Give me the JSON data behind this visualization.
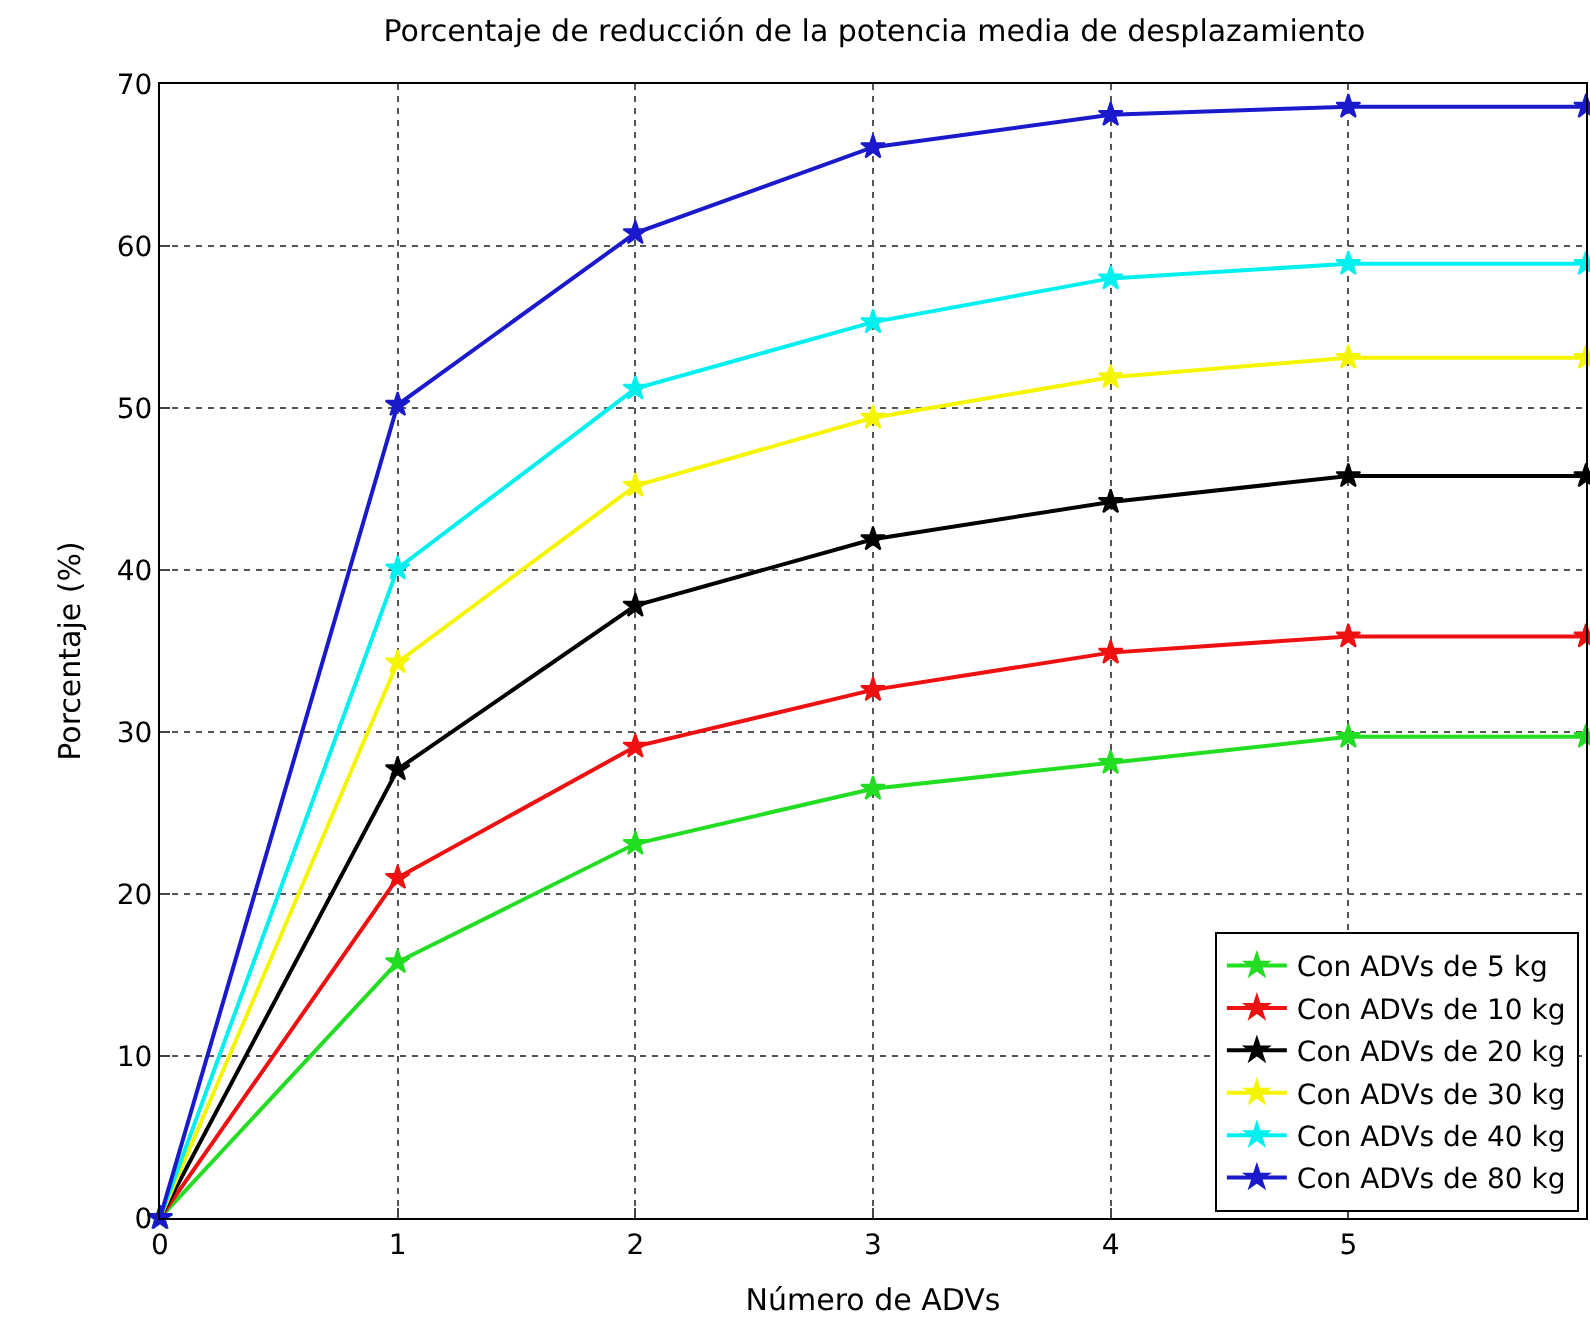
{
  "chart_data": {
    "type": "line",
    "title": "Porcentaje de reducción de la potencia media de desplazamiento",
    "xlabel": "Número de ADVs",
    "ylabel": "Porcentaje (%)",
    "x": [
      0,
      1,
      2,
      3,
      4,
      5,
      6
    ],
    "series": [
      {
        "name": "Con ADVs de 5 kg",
        "color": "#22dd22",
        "values": [
          0,
          15.8,
          23.1,
          26.5,
          28.1,
          29.7,
          29.7
        ]
      },
      {
        "name": "Con ADVs de 10 kg",
        "color": "#ee1111",
        "values": [
          0,
          21,
          29.1,
          32.6,
          34.9,
          35.9,
          35.9
        ]
      },
      {
        "name": "Con ADVs de 20 kg",
        "color": "#000000",
        "values": [
          0,
          27.7,
          37.8,
          41.9,
          44.2,
          45.8,
          45.8
        ]
      },
      {
        "name": "Con ADVs de 30 kg",
        "color": "#f5f500",
        "values": [
          0,
          34.3,
          45.2,
          49.4,
          51.9,
          53.1,
          53.1
        ]
      },
      {
        "name": "Con ADVs de 40 kg",
        "color": "#00f0f0",
        "values": [
          0,
          40.1,
          51.2,
          55.3,
          58,
          58.9,
          58.9
        ]
      },
      {
        "name": "Con ADVs de 80 kg",
        "color": "#1a1acc",
        "values": [
          0,
          50.2,
          60.8,
          66.1,
          68.1,
          68.6,
          68.6
        ]
      }
    ],
    "xlim": [
      0,
      6
    ],
    "xticks": [
      0,
      1,
      2,
      3,
      4,
      5
    ],
    "ylim": [
      0,
      70
    ],
    "yticks": [
      0,
      10,
      20,
      30,
      40,
      50,
      60,
      70
    ],
    "grid": true,
    "legend": "bottom right",
    "marker": "star",
    "line_style": "solid"
  }
}
